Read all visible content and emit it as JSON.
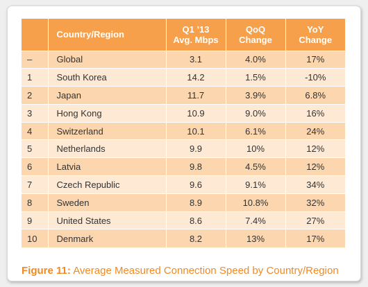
{
  "table": {
    "headers": {
      "rank": "",
      "country": "Country/Region",
      "avg_line1": "Q1 ’13",
      "avg_line2": "Avg. Mbps",
      "qoq_line1": "QoQ",
      "qoq_line2": "Change",
      "yoy_line1": "YoY",
      "yoy_line2": "Change"
    },
    "rows": [
      {
        "rank": "–",
        "country": "Global",
        "avg": "3.1",
        "qoq": "4.0%",
        "yoy": "17%"
      },
      {
        "rank": "1",
        "country": "South Korea",
        "avg": "14.2",
        "qoq": "1.5%",
        "yoy": "-10%"
      },
      {
        "rank": "2",
        "country": "Japan",
        "avg": "11.7",
        "qoq": "3.9%",
        "yoy": "6.8%"
      },
      {
        "rank": "3",
        "country": "Hong Kong",
        "avg": "10.9",
        "qoq": "9.0%",
        "yoy": "16%"
      },
      {
        "rank": "4",
        "country": "Switzerland",
        "avg": "10.1",
        "qoq": "6.1%",
        "yoy": "24%"
      },
      {
        "rank": "5",
        "country": "Netherlands",
        "avg": "9.9",
        "qoq": "10%",
        "yoy": "12%"
      },
      {
        "rank": "6",
        "country": "Latvia",
        "avg": "9.8",
        "qoq": "4.5%",
        "yoy": "12%"
      },
      {
        "rank": "7",
        "country": "Czech Republic",
        "avg": "9.6",
        "qoq": "9.1%",
        "yoy": "34%"
      },
      {
        "rank": "8",
        "country": "Sweden",
        "avg": "8.9",
        "qoq": "10.8%",
        "yoy": "32%"
      },
      {
        "rank": "9",
        "country": "United States",
        "avg": "8.6",
        "qoq": "7.4%",
        "yoy": "27%"
      },
      {
        "rank": "10",
        "country": "Denmark",
        "avg": "8.2",
        "qoq": "13%",
        "yoy": "17%"
      }
    ]
  },
  "caption": {
    "label": "Figure 11:",
    "text": "Average Measured Connection Speed by Country/Region"
  },
  "colors": {
    "header_bg": "#f7a04b",
    "row_dark": "#fbd6ae",
    "row_light": "#fde9d4",
    "caption": "#f08a24"
  }
}
